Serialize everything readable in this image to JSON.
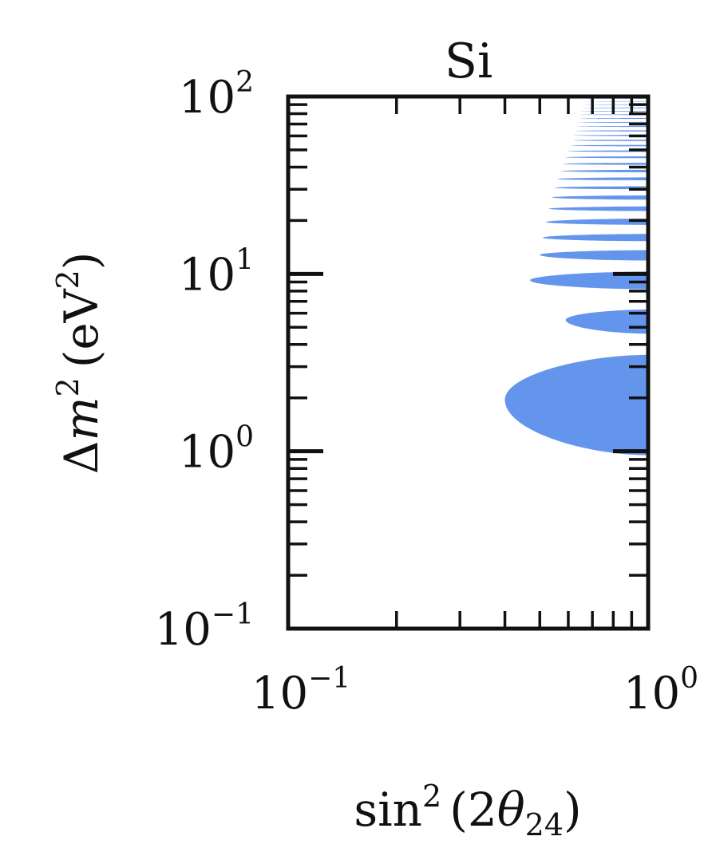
{
  "chart_data": {
    "type": "area",
    "title": "Si",
    "xlabel": {
      "base": "sin",
      "sup": "2",
      "open": "(2",
      "theta": "θ",
      "sub": "24",
      "close": ")"
    },
    "ylabel": {
      "delta": "Δ",
      "m": "m",
      "sup": "2",
      "rest": "(eV",
      "rest_sup": "2",
      "close": ")"
    },
    "xscale": "log",
    "yscale": "log",
    "xlim": [
      0.1,
      1.0
    ],
    "ylim": [
      0.1,
      100
    ],
    "xticks": [
      {
        "base": "10",
        "exp": "−1",
        "value": 0.1
      },
      {
        "base": "10",
        "exp": "0",
        "value": 1
      }
    ],
    "yticks": [
      {
        "base": "10",
        "exp": "−1",
        "value": 0.1
      },
      {
        "base": "10",
        "exp": "0",
        "value": 1
      },
      {
        "base": "10",
        "exp": "1",
        "value": 10
      },
      {
        "base": "10",
        "exp": "2",
        "value": 100
      }
    ],
    "fill_color": "#6495ED",
    "regions": [
      {
        "dm2_low": 0.95,
        "dm2_high": 3.5,
        "dm2_tip": 1.95,
        "sin2_min": 0.4
      },
      {
        "dm2_low": 4.6,
        "dm2_high": 6.3,
        "dm2_tip": 5.5,
        "sin2_min": 0.59
      },
      {
        "dm2_low": 8.2,
        "dm2_high": 10.3,
        "dm2_tip": 9.2,
        "sin2_min": 0.47
      },
      {
        "dm2_low": 11.9,
        "dm2_high": 13.6,
        "dm2_tip": 12.8,
        "sin2_min": 0.5
      },
      {
        "dm2_low": 15.3,
        "dm2_high": 16.8,
        "dm2_tip": 16.0,
        "sin2_min": 0.51
      },
      {
        "dm2_low": 18.9,
        "dm2_high": 20.5,
        "dm2_tip": 19.6,
        "sin2_min": 0.52
      },
      {
        "dm2_low": 22.6,
        "dm2_high": 24.0,
        "dm2_tip": 23.3,
        "sin2_min": 0.53
      },
      {
        "dm2_low": 26.2,
        "dm2_high": 27.7,
        "dm2_tip": 27.0,
        "sin2_min": 0.54
      },
      {
        "dm2_low": 30.0,
        "dm2_high": 31.2,
        "dm2_tip": 30.6,
        "sin2_min": 0.55
      },
      {
        "dm2_low": 33.7,
        "dm2_high": 35.0,
        "dm2_tip": 34.3,
        "sin2_min": 0.56
      },
      {
        "dm2_low": 37.4,
        "dm2_high": 38.6,
        "dm2_tip": 38.0,
        "sin2_min": 0.57
      },
      {
        "dm2_low": 41.2,
        "dm2_high": 42.3,
        "dm2_tip": 41.7,
        "sin2_min": 0.58
      },
      {
        "dm2_low": 44.9,
        "dm2_high": 46.0,
        "dm2_tip": 45.4,
        "sin2_min": 0.59
      },
      {
        "dm2_low": 48.7,
        "dm2_high": 49.7,
        "dm2_tip": 49.2,
        "sin2_min": 0.6
      },
      {
        "dm2_low": 52.4,
        "dm2_high": 53.4,
        "dm2_tip": 52.9,
        "sin2_min": 0.61
      },
      {
        "dm2_low": 56.1,
        "dm2_high": 57.1,
        "dm2_tip": 56.6,
        "sin2_min": 0.62
      },
      {
        "dm2_low": 59.9,
        "dm2_high": 60.8,
        "dm2_tip": 60.3,
        "sin2_min": 0.62
      },
      {
        "dm2_low": 63.6,
        "dm2_high": 64.5,
        "dm2_tip": 64.0,
        "sin2_min": 0.63
      },
      {
        "dm2_low": 67.4,
        "dm2_high": 68.2,
        "dm2_tip": 67.8,
        "sin2_min": 0.63
      },
      {
        "dm2_low": 71.1,
        "dm2_high": 71.9,
        "dm2_tip": 71.5,
        "sin2_min": 0.64
      },
      {
        "dm2_low": 74.8,
        "dm2_high": 75.6,
        "dm2_tip": 75.2,
        "sin2_min": 0.64
      },
      {
        "dm2_low": 78.6,
        "dm2_high": 79.3,
        "dm2_tip": 78.9,
        "sin2_min": 0.65
      },
      {
        "dm2_low": 82.3,
        "dm2_high": 83.0,
        "dm2_tip": 82.6,
        "sin2_min": 0.65
      },
      {
        "dm2_low": 86.0,
        "dm2_high": 86.7,
        "dm2_tip": 86.3,
        "sin2_min": 0.66
      },
      {
        "dm2_low": 89.7,
        "dm2_high": 90.4,
        "dm2_tip": 90.0,
        "sin2_min": 0.66
      },
      {
        "dm2_low": 93.5,
        "dm2_high": 94.1,
        "dm2_tip": 93.8,
        "sin2_min": 0.67
      },
      {
        "dm2_low": 97.2,
        "dm2_high": 97.8,
        "dm2_tip": 97.5,
        "sin2_min": 0.67
      }
    ]
  }
}
